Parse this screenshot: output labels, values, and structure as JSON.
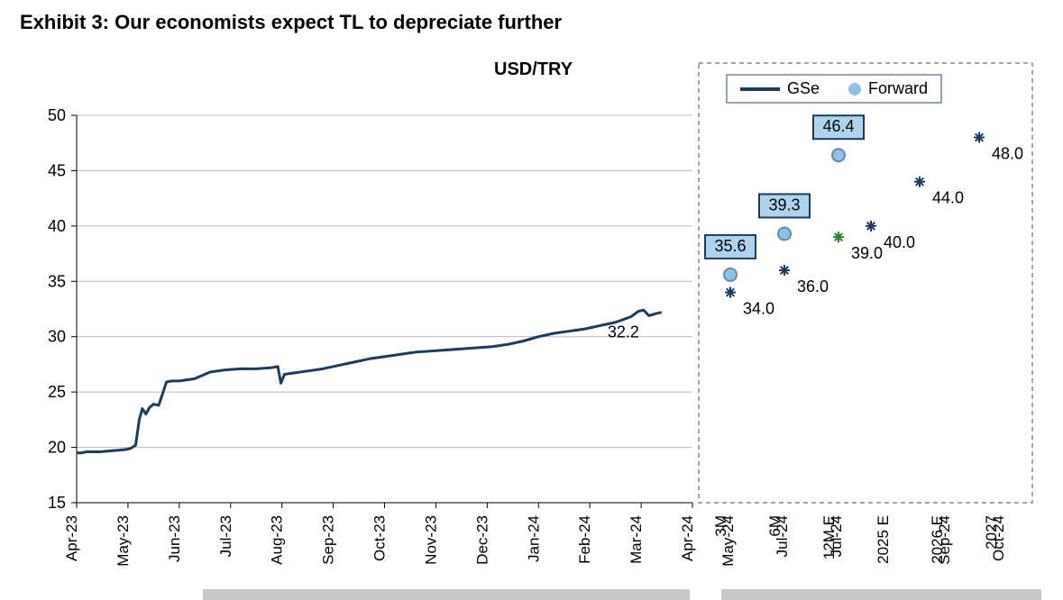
{
  "title": "Exhibit 3: Our economists expect TL to depreciate further",
  "chart": {
    "type": "line+scatter",
    "title_label": "USD/TRY",
    "background_color": "#ffffff",
    "grid_color": "#b8b8b8",
    "axis_color": "#333333",
    "line_color": "#1d3a5f",
    "line_width": 3,
    "forecast_box_fill": "#aed3ec",
    "forecast_box_stroke": "#1d3a5f",
    "forecast_circle_fill": "#8fc1e3",
    "forecast_circle_stroke": "#5a8db3",
    "forward_marker_color": "#1d3a5f",
    "forward_marker_alt_color": "#2e7d32",
    "ylim": [
      15,
      50
    ],
    "ytick_step": 5,
    "yticks": [
      15,
      20,
      25,
      30,
      35,
      40,
      45,
      50
    ],
    "x_labels_main": [
      "Apr-23",
      "May-23",
      "Jun-23",
      "Jul-23",
      "Aug-23",
      "Sep-23",
      "Oct-23",
      "Nov-23",
      "Dec-23",
      "Jan-24",
      "Feb-24",
      "Mar-24",
      "Apr-24"
    ],
    "x_labels_forecast_top": [
      "May-24",
      "Jul-24",
      "Jul-24",
      "",
      "Sep-24",
      "Oct-24"
    ],
    "x_labels_forecast_bot": [
      "3M",
      "6M",
      "12M E",
      "2025 E",
      "2026 E",
      "2027"
    ],
    "historical_series": [
      {
        "t": 0.0,
        "v": 19.5
      },
      {
        "t": 0.08,
        "v": 19.5
      },
      {
        "t": 0.2,
        "v": 19.6
      },
      {
        "t": 0.45,
        "v": 19.6
      },
      {
        "t": 0.7,
        "v": 19.7
      },
      {
        "t": 0.95,
        "v": 19.8
      },
      {
        "t": 1.05,
        "v": 19.9
      },
      {
        "t": 1.15,
        "v": 20.2
      },
      {
        "t": 1.22,
        "v": 22.5
      },
      {
        "t": 1.28,
        "v": 23.5
      },
      {
        "t": 1.35,
        "v": 23.0
      },
      {
        "t": 1.42,
        "v": 23.6
      },
      {
        "t": 1.5,
        "v": 23.9
      },
      {
        "t": 1.6,
        "v": 23.8
      },
      {
        "t": 1.75,
        "v": 25.9
      },
      {
        "t": 1.85,
        "v": 26.0
      },
      {
        "t": 2.0,
        "v": 26.0
      },
      {
        "t": 2.3,
        "v": 26.2
      },
      {
        "t": 2.6,
        "v": 26.8
      },
      {
        "t": 2.9,
        "v": 27.0
      },
      {
        "t": 3.2,
        "v": 27.1
      },
      {
        "t": 3.5,
        "v": 27.1
      },
      {
        "t": 3.8,
        "v": 27.2
      },
      {
        "t": 3.92,
        "v": 27.3
      },
      {
        "t": 3.98,
        "v": 25.8
      },
      {
        "t": 4.05,
        "v": 26.6
      },
      {
        "t": 4.2,
        "v": 26.7
      },
      {
        "t": 4.5,
        "v": 26.9
      },
      {
        "t": 4.8,
        "v": 27.1
      },
      {
        "t": 5.1,
        "v": 27.4
      },
      {
        "t": 5.4,
        "v": 27.7
      },
      {
        "t": 5.7,
        "v": 28.0
      },
      {
        "t": 6.0,
        "v": 28.2
      },
      {
        "t": 6.3,
        "v": 28.4
      },
      {
        "t": 6.6,
        "v": 28.6
      },
      {
        "t": 6.9,
        "v": 28.7
      },
      {
        "t": 7.2,
        "v": 28.8
      },
      {
        "t": 7.5,
        "v": 28.9
      },
      {
        "t": 7.8,
        "v": 29.0
      },
      {
        "t": 8.1,
        "v": 29.1
      },
      {
        "t": 8.4,
        "v": 29.3
      },
      {
        "t": 8.7,
        "v": 29.6
      },
      {
        "t": 9.0,
        "v": 30.0
      },
      {
        "t": 9.3,
        "v": 30.3
      },
      {
        "t": 9.6,
        "v": 30.5
      },
      {
        "t": 9.9,
        "v": 30.7
      },
      {
        "t": 10.2,
        "v": 31.0
      },
      {
        "t": 10.5,
        "v": 31.3
      },
      {
        "t": 10.8,
        "v": 31.8
      },
      {
        "t": 10.95,
        "v": 32.3
      },
      {
        "t": 11.05,
        "v": 32.4
      },
      {
        "t": 11.15,
        "v": 31.9
      },
      {
        "t": 11.3,
        "v": 32.1
      },
      {
        "t": 11.4,
        "v": 32.2
      }
    ],
    "last_value_label": "32.2",
    "forecast_gse": [
      {
        "slot": 0,
        "value": 35.6,
        "label": "35.6"
      },
      {
        "slot": 1,
        "value": 39.3,
        "label": "39.3"
      },
      {
        "slot": 2,
        "value": 46.4,
        "label": "46.4"
      }
    ],
    "forward_points": [
      {
        "slot": 0,
        "value": 34.0,
        "label": "34.0",
        "color": "#1d3a5f"
      },
      {
        "slot": 1,
        "value": 36.0,
        "label": "36.0",
        "color": "#1d3a5f"
      },
      {
        "slot": 2,
        "value": 39.0,
        "label": "39.0",
        "color": "#2e7d32"
      },
      {
        "slot": 2.6,
        "value": 40.0,
        "label": "40.0",
        "color": "#1d3a5f"
      },
      {
        "slot": 3.5,
        "value": 44.0,
        "label": "44.0",
        "color": "#1d3a5f"
      },
      {
        "slot": 4.6,
        "value": 48.0,
        "label": "48.0",
        "color": "#1d3a5f"
      }
    ],
    "legend": {
      "gse": "GSe",
      "forward": "Forward"
    }
  }
}
